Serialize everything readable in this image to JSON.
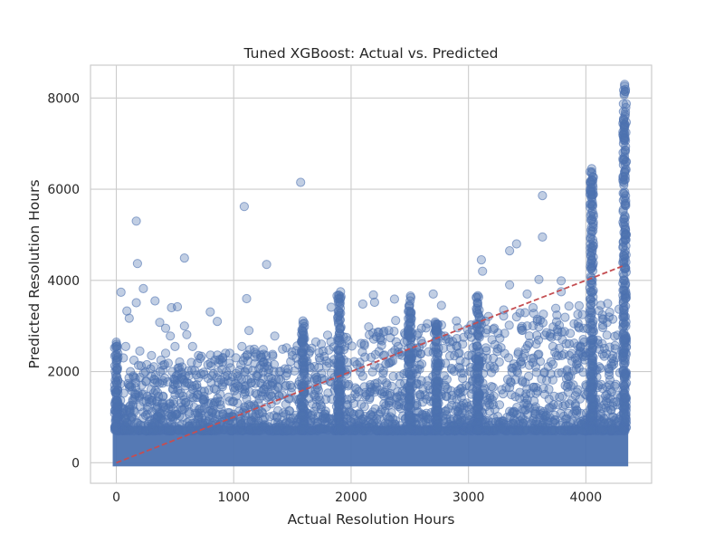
{
  "chart_data": {
    "type": "scatter",
    "title": "Tuned XGBoost: Actual vs. Predicted",
    "xlabel": "Actual Resolution Hours",
    "ylabel": "Predicted Resolution Hours",
    "xlim": [
      -220,
      4560
    ],
    "ylim": [
      -450,
      8720
    ],
    "xticks": [
      0,
      1000,
      2000,
      3000,
      4000
    ],
    "yticks": [
      0,
      2000,
      4000,
      6000,
      8000
    ],
    "grid": true,
    "marker_color": "#4c72b0",
    "marker_alpha": 0.35,
    "reference_line": {
      "style": "dashed",
      "color": "#c44e52",
      "from": [
        0,
        0
      ],
      "to": [
        4330,
        4330
      ]
    },
    "dense_region": {
      "x_range": [
        0,
        4330
      ],
      "y_range": [
        0,
        800
      ],
      "note": "saturated band of overlapping points"
    },
    "vertical_clusters": [
      {
        "x": 0,
        "y_max": 2650
      },
      {
        "x": 1590,
        "y_max": 3100
      },
      {
        "x": 1900,
        "y_max": 3750
      },
      {
        "x": 2500,
        "y_max": 3700
      },
      {
        "x": 2730,
        "y_max": 3100
      },
      {
        "x": 3080,
        "y_max": 3700
      },
      {
        "x": 4050,
        "y_max": 6450
      },
      {
        "x": 4330,
        "y_max": 8300
      }
    ],
    "points": [
      [
        170,
        5300
      ],
      [
        1090,
        5620
      ],
      [
        1570,
        6150
      ],
      [
        180,
        4370
      ],
      [
        580,
        4490
      ],
      [
        1280,
        4350
      ],
      [
        4330,
        8300
      ],
      [
        4330,
        8260
      ],
      [
        4330,
        7170
      ],
      [
        4330,
        7080
      ],
      [
        4330,
        6650
      ],
      [
        4330,
        6380
      ],
      [
        4050,
        6450
      ],
      [
        4050,
        6350
      ],
      [
        4050,
        6200
      ],
      [
        3630,
        5860
      ],
      [
        3630,
        4950
      ],
      [
        3410,
        4800
      ],
      [
        3350,
        4650
      ],
      [
        3110,
        4450
      ],
      [
        3120,
        4200
      ],
      [
        3600,
        4020
      ],
      [
        3790,
        3990
      ],
      [
        3500,
        3700
      ],
      [
        3790,
        3750
      ],
      [
        3350,
        3900
      ],
      [
        3550,
        3400
      ],
      [
        3410,
        3200
      ],
      [
        2700,
        3700
      ],
      [
        2370,
        3590
      ],
      [
        2190,
        3680
      ],
      [
        2200,
        3520
      ],
      [
        1910,
        3750
      ],
      [
        1880,
        3660
      ],
      [
        1830,
        3410
      ],
      [
        2100,
        3480
      ],
      [
        1590,
        3110
      ],
      [
        1590,
        3050
      ],
      [
        1800,
        2800
      ],
      [
        1960,
        2750
      ],
      [
        1110,
        3600
      ],
      [
        800,
        3310
      ],
      [
        860,
        3100
      ],
      [
        170,
        3510
      ],
      [
        230,
        3820
      ],
      [
        40,
        3740
      ],
      [
        90,
        3330
      ],
      [
        110,
        3170
      ],
      [
        470,
        3400
      ],
      [
        520,
        3420
      ],
      [
        330,
        3550
      ],
      [
        370,
        3080
      ],
      [
        420,
        2950
      ],
      [
        460,
        2780
      ],
      [
        580,
        3000
      ],
      [
        600,
        2810
      ],
      [
        650,
        2550
      ],
      [
        700,
        2350
      ],
      [
        930,
        2400
      ],
      [
        1070,
        2550
      ],
      [
        1130,
        2900
      ],
      [
        1180,
        2420
      ],
      [
        1230,
        2360
      ],
      [
        1250,
        2200
      ],
      [
        1350,
        2780
      ],
      [
        1450,
        2520
      ],
      [
        1300,
        2050
      ],
      [
        1500,
        2350
      ],
      [
        1550,
        2150
      ],
      [
        1650,
        2450
      ],
      [
        1700,
        2650
      ],
      [
        1730,
        2300
      ],
      [
        2150,
        2980
      ],
      [
        2250,
        2700
      ],
      [
        2320,
        2900
      ],
      [
        2380,
        3120
      ],
      [
        2400,
        2550
      ],
      [
        2600,
        2950
      ],
      [
        2650,
        3050
      ],
      [
        2770,
        3450
      ],
      [
        2800,
        2780
      ],
      [
        2850,
        2520
      ],
      [
        2950,
        2600
      ],
      [
        3000,
        2820
      ],
      [
        3200,
        2700
      ],
      [
        3250,
        2500
      ],
      [
        3300,
        3350
      ],
      [
        3450,
        2950
      ],
      [
        3500,
        3000
      ],
      [
        3600,
        2980
      ],
      [
        3650,
        2800
      ],
      [
        3720,
        2550
      ],
      [
        3800,
        2700
      ],
      [
        3860,
        2350
      ],
      [
        3900,
        3050
      ],
      [
        3950,
        2450
      ],
      [
        3980,
        2950
      ],
      [
        4150,
        3150
      ],
      [
        4180,
        2800
      ],
      [
        4200,
        2050
      ],
      [
        4250,
        2500
      ],
      [
        4270,
        2800
      ],
      [
        3850,
        1900
      ],
      [
        3700,
        1950
      ],
      [
        3550,
        2200
      ],
      [
        3150,
        2100
      ],
      [
        3050,
        1950
      ],
      [
        2950,
        1850
      ],
      [
        2600,
        1800
      ],
      [
        2450,
        1950
      ],
      [
        2300,
        1750
      ],
      [
        2200,
        1600
      ],
      [
        2100,
        1900
      ],
      [
        2050,
        2150
      ],
      [
        1950,
        2000
      ],
      [
        1750,
        1850
      ],
      [
        1450,
        1700
      ],
      [
        1350,
        1600
      ],
      [
        1150,
        1750
      ],
      [
        1050,
        1650
      ],
      [
        950,
        1800
      ],
      [
        900,
        2050
      ],
      [
        780,
        2150
      ],
      [
        720,
        1950
      ],
      [
        640,
        2200
      ],
      [
        560,
        2100
      ],
      [
        500,
        2550
      ],
      [
        420,
        2400
      ],
      [
        380,
        2250
      ],
      [
        300,
        2350
      ],
      [
        260,
        2150
      ],
      [
        200,
        2450
      ],
      [
        150,
        2250
      ],
      [
        120,
        2000
      ],
      [
        80,
        2550
      ],
      [
        60,
        2300
      ],
      [
        300,
        1900
      ],
      [
        550,
        1850
      ],
      [
        850,
        1600
      ],
      [
        1200,
        1500
      ],
      [
        1600,
        1550
      ],
      [
        2500,
        1600
      ],
      [
        2800,
        1700
      ],
      [
        3350,
        1650
      ],
      [
        3650,
        1500
      ],
      [
        4100,
        1650
      ],
      [
        4220,
        1550
      ],
      [
        3950,
        1400
      ],
      [
        3400,
        1450
      ],
      [
        2900,
        1400
      ]
    ]
  }
}
